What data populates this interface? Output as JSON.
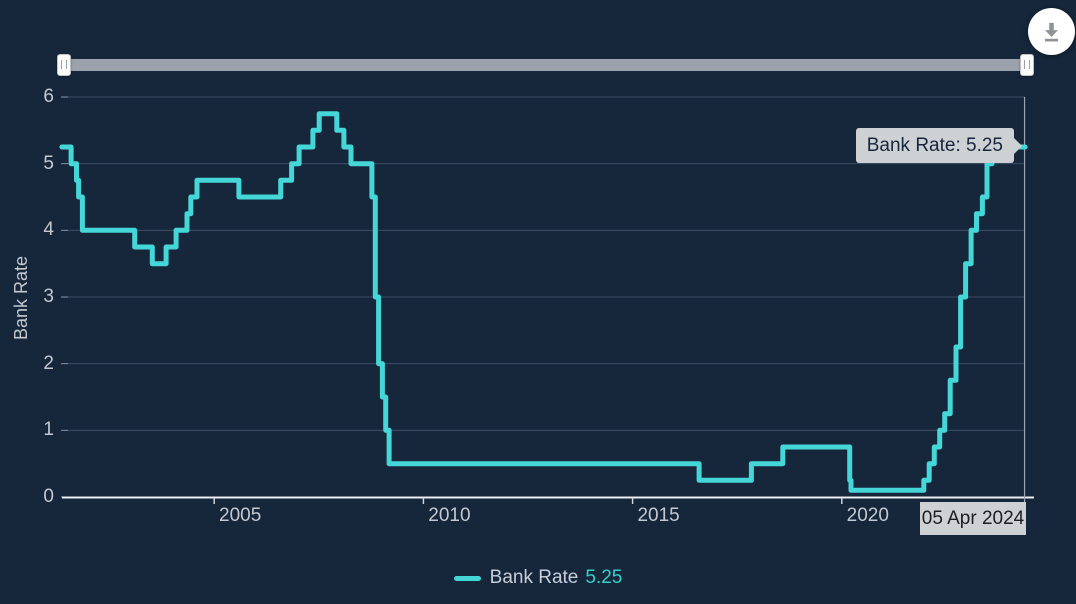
{
  "widget": {
    "download_button": {
      "icon": "download-icon"
    }
  },
  "tooltip": {
    "text": "Bank Rate: 5.25",
    "date_label": "05 Apr 2024"
  },
  "legend": {
    "series_label": "Bank Rate",
    "value": "5.25"
  },
  "colors": {
    "background": "#16273c",
    "series_line": "#45d6d8",
    "grid_line": "#3e4d63",
    "grid_tick": "#8893a6",
    "axis_line": "#eceff1",
    "x_tick": "#cfd3d8",
    "axis_text": "#c5c9cf",
    "tooltip_bg": "#ced1d4",
    "tooltip_text": "#17263c",
    "legend_value": "#35d1c8",
    "slider_track": "#9ca2ab",
    "crosshair": "#9aa3af"
  },
  "chart_data": {
    "type": "line",
    "step": true,
    "title": "",
    "xlabel": "",
    "ylabel": "Bank Rate",
    "ylim": [
      0,
      6
    ],
    "y_ticks": [
      6,
      5,
      4,
      3,
      2,
      1,
      0
    ],
    "x_ticks": [
      2005,
      2010,
      2015,
      2020
    ],
    "x_range": [
      2001.36,
      2024.38
    ],
    "grid": true,
    "legend_position": "bottom",
    "series": [
      {
        "name": "Bank Rate",
        "current_value": 5.25,
        "points_year_rate": [
          [
            2001.36,
            5.25
          ],
          [
            2001.58,
            5.0
          ],
          [
            2001.71,
            4.75
          ],
          [
            2001.76,
            4.5
          ],
          [
            2001.85,
            4.0
          ],
          [
            2003.1,
            3.75
          ],
          [
            2003.52,
            3.5
          ],
          [
            2003.85,
            3.75
          ],
          [
            2004.09,
            4.0
          ],
          [
            2004.35,
            4.25
          ],
          [
            2004.44,
            4.5
          ],
          [
            2004.59,
            4.75
          ],
          [
            2005.59,
            4.5
          ],
          [
            2006.59,
            4.75
          ],
          [
            2006.85,
            5.0
          ],
          [
            2007.03,
            5.25
          ],
          [
            2007.36,
            5.5
          ],
          [
            2007.51,
            5.75
          ],
          [
            2007.93,
            5.5
          ],
          [
            2008.1,
            5.25
          ],
          [
            2008.27,
            5.0
          ],
          [
            2008.77,
            4.5
          ],
          [
            2008.85,
            3.0
          ],
          [
            2008.93,
            2.0
          ],
          [
            2009.02,
            1.5
          ],
          [
            2009.1,
            1.0
          ],
          [
            2009.18,
            0.5
          ],
          [
            2016.59,
            0.25
          ],
          [
            2017.84,
            0.5
          ],
          [
            2018.59,
            0.75
          ],
          [
            2020.19,
            0.25
          ],
          [
            2020.22,
            0.1
          ],
          [
            2021.96,
            0.25
          ],
          [
            2022.09,
            0.5
          ],
          [
            2022.21,
            0.75
          ],
          [
            2022.34,
            1.0
          ],
          [
            2022.46,
            1.25
          ],
          [
            2022.59,
            1.75
          ],
          [
            2022.73,
            2.25
          ],
          [
            2022.84,
            3.0
          ],
          [
            2022.96,
            3.5
          ],
          [
            2023.09,
            4.0
          ],
          [
            2023.22,
            4.25
          ],
          [
            2023.36,
            4.5
          ],
          [
            2023.47,
            5.0
          ],
          [
            2023.59,
            5.25
          ],
          [
            2024.38,
            5.25
          ]
        ]
      }
    ]
  }
}
